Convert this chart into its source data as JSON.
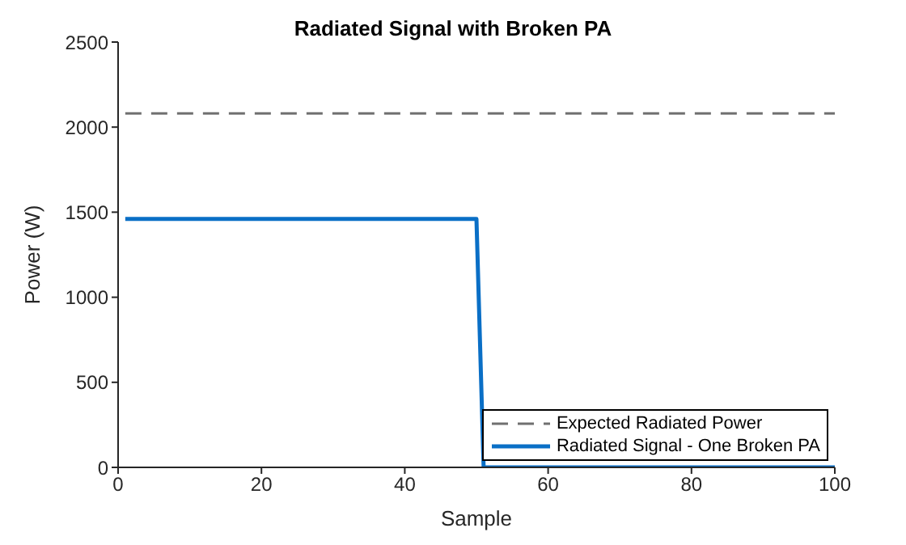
{
  "chart_data": {
    "type": "line",
    "title": "Radiated Signal with Broken PA",
    "xlabel": "Sample",
    "ylabel": "Power (W)",
    "xlim": [
      0,
      100
    ],
    "xticks": [
      0,
      20,
      40,
      60,
      80,
      100
    ],
    "ylim": [
      0,
      2500
    ],
    "yticks": [
      0,
      500,
      1000,
      1500,
      2000,
      2500
    ],
    "grid": false,
    "legend": "bottom right",
    "marker": "none",
    "series": [
      {
        "name": "Expected Radiated Power",
        "color": "#707070",
        "line_style": "dashed",
        "x": [
          1,
          100
        ],
        "values": [
          2080,
          2080
        ]
      },
      {
        "name": "Radiated Signal - One Broken PA",
        "color": "#0a6fc6",
        "line_style": "solid",
        "x": [
          1,
          50,
          51,
          100
        ],
        "values": [
          1460,
          1460,
          0,
          0
        ]
      }
    ]
  }
}
